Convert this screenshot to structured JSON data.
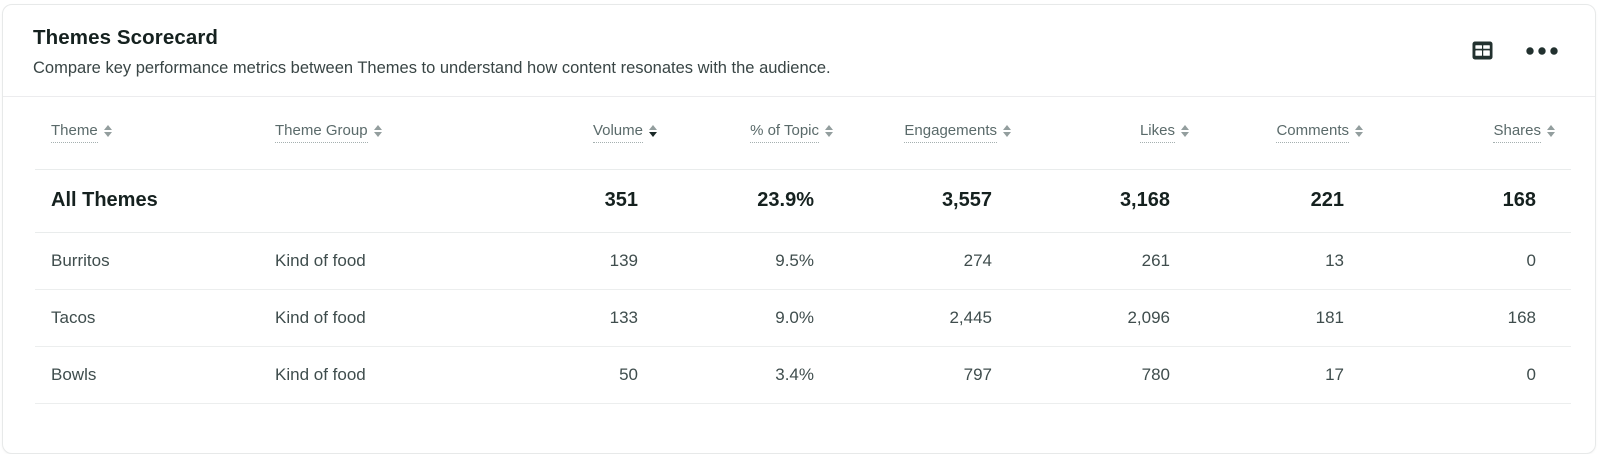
{
  "header": {
    "title": "Themes Scorecard",
    "subtitle": "Compare key performance metrics between Themes to understand how content resonates with the audience.",
    "actions": [
      {
        "name": "table-view",
        "icon": "table-grid-icon"
      },
      {
        "name": "more-options",
        "icon": "ellipsis-icon"
      }
    ]
  },
  "colors": {
    "title_text": "#15211f",
    "subtitle_text": "#394545",
    "header_text": "#5a6a6a",
    "cell_text": "#3f4d4d",
    "summary_text": "#15211f",
    "row_border": "#eceeee",
    "sort_inactive": "#939e9e",
    "sort_active": "#1b2928",
    "icon_dark": "#22312f",
    "card_border": "#e7e9e9"
  },
  "chart_data": {
    "type": "table",
    "title": "Themes Scorecard",
    "columns": [
      "Theme",
      "Theme Group",
      "Volume",
      "% of Topic",
      "Engagements",
      "Likes",
      "Comments",
      "Shares"
    ],
    "rows": [
      [
        "All Themes",
        "",
        351,
        "23.9%",
        3557,
        3168,
        221,
        168
      ],
      [
        "Burritos",
        "Kind of food",
        139,
        "9.5%",
        274,
        261,
        13,
        0
      ],
      [
        "Tacos",
        "Kind of food",
        133,
        "9.0%",
        2445,
        2096,
        181,
        168
      ],
      [
        "Bowls",
        "Kind of food",
        50,
        "3.4%",
        797,
        780,
        17,
        0
      ]
    ],
    "sorted_by": "Volume",
    "sort_direction": "desc"
  },
  "table": {
    "columns": [
      {
        "label": "Theme",
        "align": "left",
        "sort": "none"
      },
      {
        "label": "Theme Group",
        "align": "left",
        "sort": "none"
      },
      {
        "label": "Volume",
        "align": "right",
        "sort": "desc"
      },
      {
        "label": "% of Topic",
        "align": "right",
        "sort": "none"
      },
      {
        "label": "Engagements",
        "align": "right",
        "sort": "none"
      },
      {
        "label": "Likes",
        "align": "right",
        "sort": "none"
      },
      {
        "label": "Comments",
        "align": "right",
        "sort": "none"
      },
      {
        "label": "Shares",
        "align": "right",
        "sort": "none"
      }
    ],
    "rows": [
      {
        "type": "summary",
        "cells": [
          "All Themes",
          "",
          "351",
          "23.9%",
          "3,557",
          "3,168",
          "221",
          "168"
        ]
      },
      {
        "type": "data",
        "cells": [
          "Burritos",
          "Kind of food",
          "139",
          "9.5%",
          "274",
          "261",
          "13",
          "0"
        ]
      },
      {
        "type": "data",
        "cells": [
          "Tacos",
          "Kind of food",
          "133",
          "9.0%",
          "2,445",
          "2,096",
          "181",
          "168"
        ]
      },
      {
        "type": "data",
        "cells": [
          "Bowls",
          "Kind of food",
          "50",
          "3.4%",
          "797",
          "780",
          "17",
          "0"
        ]
      }
    ]
  }
}
